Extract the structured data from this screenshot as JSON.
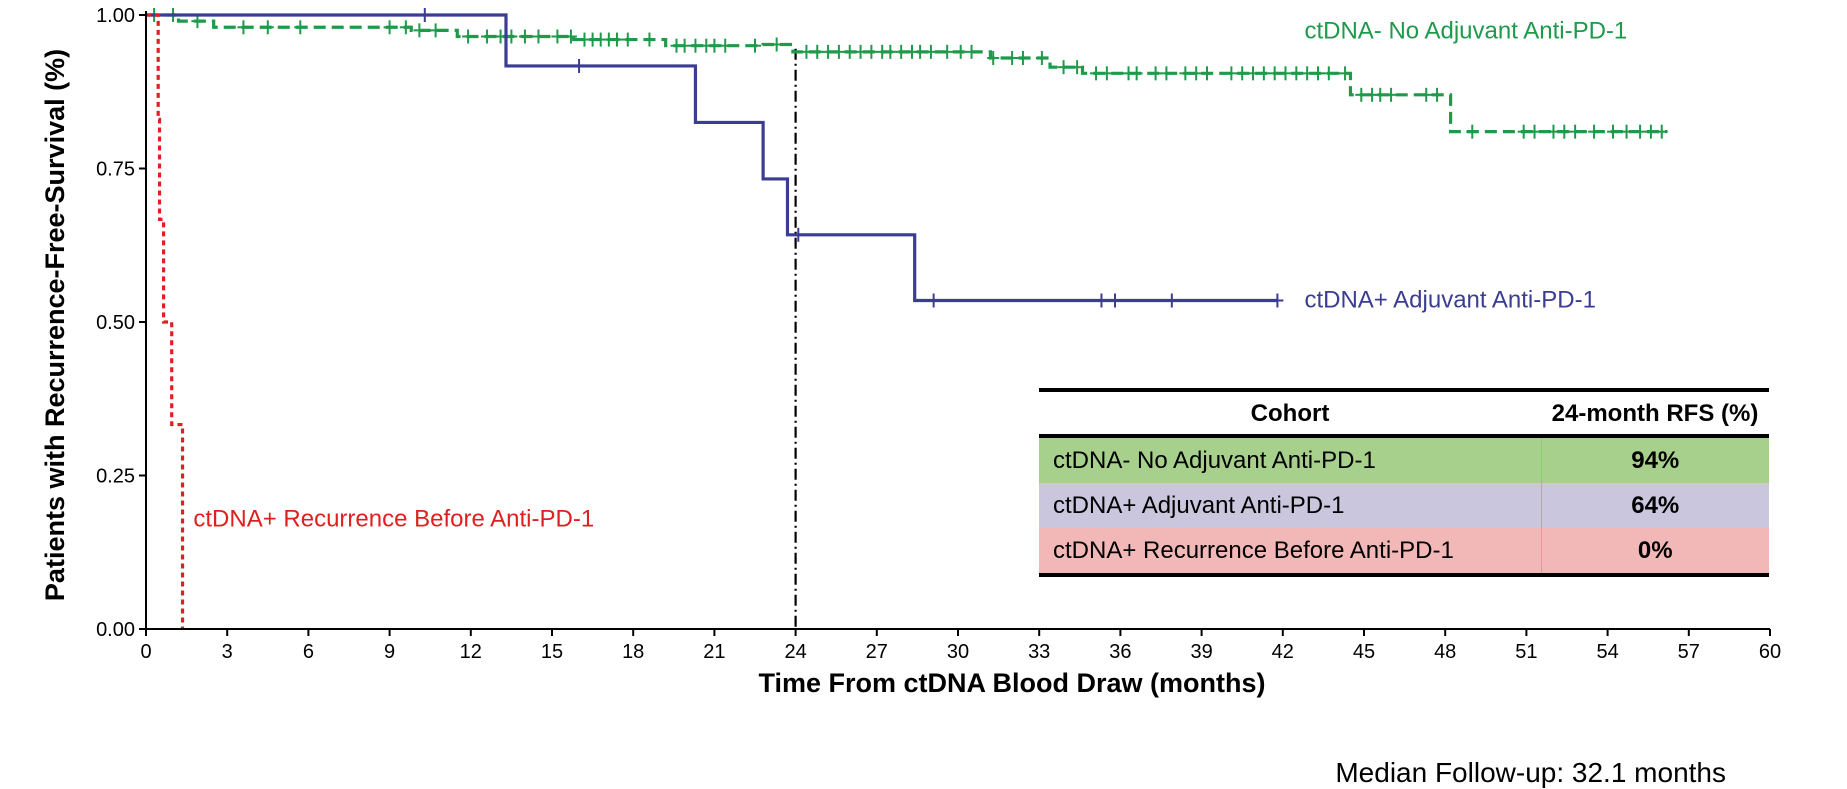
{
  "chart_data": {
    "type": "line",
    "subtype": "kaplan-meier",
    "title": "",
    "xlabel": "Time From ctDNA Blood Draw (months)",
    "ylabel": "Patients with Recurrence-Free-Survival (%)",
    "xlim": [
      0,
      60
    ],
    "ylim": [
      0,
      1
    ],
    "x_ticks": [
      "0",
      "3",
      "6",
      "9",
      "12",
      "15",
      "18",
      "21",
      "24",
      "27",
      "30",
      "33",
      "36",
      "39",
      "42",
      "45",
      "48",
      "51",
      "54",
      "57",
      "60"
    ],
    "y_ticks": [
      "0.00",
      "0.25",
      "0.50",
      "0.75",
      "1.00"
    ],
    "reference_line_x": 24,
    "grid": false,
    "series": [
      {
        "name": "ctDNA- No Adjuvant Anti-PD-1",
        "color": "#1e9a4a",
        "dash": "dashed",
        "steps": [
          [
            0,
            1.0
          ],
          [
            1.2,
            0.99
          ],
          [
            2.5,
            0.98
          ],
          [
            9.8,
            0.975
          ],
          [
            11.5,
            0.965
          ],
          [
            15.8,
            0.96
          ],
          [
            19.2,
            0.95
          ],
          [
            21.5,
            0.95
          ],
          [
            22.8,
            0.952
          ],
          [
            23.9,
            0.94
          ],
          [
            31.2,
            0.93
          ],
          [
            33.4,
            0.915
          ],
          [
            34.6,
            0.905
          ],
          [
            44.5,
            0.87
          ],
          [
            48.2,
            0.81
          ],
          [
            56.2,
            0.81
          ]
        ],
        "censors": [
          0.3,
          1.0,
          1.9,
          3.6,
          4.5,
          5.7,
          9.0,
          9.6,
          10.1,
          10.7,
          11.9,
          12.6,
          13.1,
          13.5,
          14.0,
          14.5,
          15.2,
          15.7,
          16.2,
          16.5,
          16.8,
          17.1,
          17.4,
          17.8,
          18.6,
          19.6,
          19.9,
          20.3,
          20.7,
          21.0,
          21.4,
          22.5,
          23.3,
          24.4,
          24.8,
          25.2,
          25.6,
          26.0,
          26.4,
          26.8,
          27.2,
          27.5,
          27.9,
          28.3,
          28.6,
          29.0,
          29.6,
          30.1,
          30.5,
          31.3,
          32.0,
          32.4,
          33.1,
          33.9,
          34.4,
          35.1,
          35.5,
          36.3,
          36.6,
          37.3,
          37.7,
          38.4,
          38.8,
          39.2,
          40.1,
          40.5,
          40.9,
          41.3,
          41.7,
          42.1,
          42.5,
          42.9,
          43.3,
          43.7,
          44.3,
          44.9,
          45.3,
          45.6,
          46.0,
          47.3,
          47.7,
          49.0,
          50.9,
          51.3,
          52.0,
          52.4,
          52.8,
          53.5,
          54.2,
          54.7,
          55.2,
          55.6,
          56.0
        ],
        "label_x": 42.8,
        "label_y": 0.975
      },
      {
        "name": "ctDNA+ Adjuvant Anti-PD-1",
        "color": "#3b3d92",
        "dash": "solid",
        "steps": [
          [
            0,
            1.0
          ],
          [
            13.3,
            0.917
          ],
          [
            20.3,
            0.825
          ],
          [
            22.8,
            0.733
          ],
          [
            23.7,
            0.642
          ],
          [
            28.4,
            0.535
          ],
          [
            41.8,
            0.535
          ]
        ],
        "censors": [
          10.3,
          16.0,
          24.1,
          29.1,
          35.3,
          35.8,
          37.9,
          41.8
        ],
        "label_x": 42.8,
        "label_y": 0.537
      },
      {
        "name": "ctDNA+ Recurrence Before Anti-PD-1",
        "color": "#e02020",
        "dash": "dotted",
        "steps": [
          [
            0,
            1.0
          ],
          [
            0.45,
            0.83
          ],
          [
            0.5,
            0.667
          ],
          [
            0.65,
            0.5
          ],
          [
            0.95,
            0.333
          ],
          [
            1.35,
            0.0
          ]
        ],
        "censors": [],
        "label_x": 1.75,
        "label_y": 0.18
      }
    ],
    "table": {
      "headers": [
        "Cohort",
        "24-month RFS (%)"
      ],
      "rows": [
        {
          "cohort": "ctDNA- No Adjuvant Anti-PD-1",
          "rfs": "94%",
          "color": "#a8d08d"
        },
        {
          "cohort": "ctDNA+ Adjuvant Anti-PD-1",
          "rfs": "64%",
          "color": "#c9c6dd"
        },
        {
          "cohort": "ctDNA+ Recurrence Before Anti-PD-1",
          "rfs": "0%",
          "color": "#f2b8b8"
        }
      ]
    },
    "footnote": "Median Follow-up: 32.1 months"
  }
}
